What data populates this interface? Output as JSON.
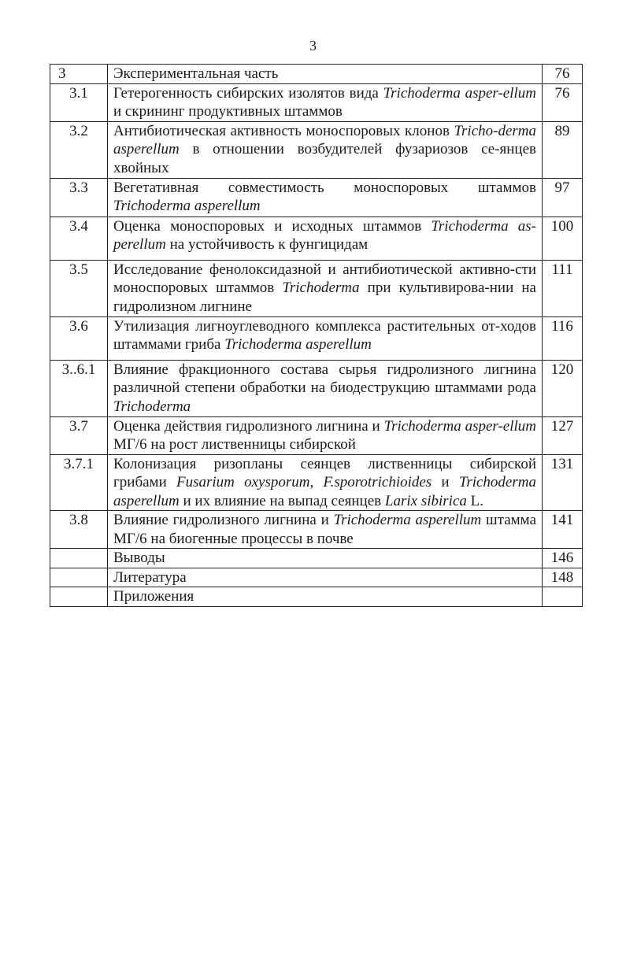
{
  "page_number": "3",
  "toc": [
    {
      "num": "3",
      "page": "76",
      "title": [
        {
          "t": "Экспериментальная часть",
          "i": false
        }
      ]
    },
    {
      "num": "3.1",
      "page": "76",
      "title": [
        {
          "t": "Гетерогенность сибирских изолятов вида ",
          "i": false
        },
        {
          "t": "Trichoderma asper-ellum",
          "i": true
        },
        {
          "t": " и скрининг продуктивных штаммов",
          "i": false
        }
      ]
    },
    {
      "num": "3.2",
      "page": "89",
      "title": [
        {
          "t": "Антибиотическая активность моноспоровых клонов ",
          "i": false
        },
        {
          "t": "Tricho-derma asperellum",
          "i": true
        },
        {
          "t": " в отношении возбудителей фузариозов се-янцев хвойных",
          "i": false
        }
      ]
    },
    {
      "num": "3.3",
      "page": "97",
      "title": [
        {
          "t": "Вегетативная совместимость моноспоровых штаммов ",
          "i": false
        },
        {
          "t": "Trichoderma asperellum",
          "i": true
        }
      ]
    },
    {
      "num": "3.4",
      "page": "100",
      "title": [
        {
          "t": "Оценка моноспоровых и исходных штаммов ",
          "i": false
        },
        {
          "t": "Trichoderma as-perellum",
          "i": true
        },
        {
          "t": " на устойчивость к фунгицидам",
          "i": false
        }
      ]
    },
    {
      "num": "3.5",
      "page": "111",
      "title": [
        {
          "t": "Исследование фенолоксидазной и антибиотической активно-сти моноспоровых штаммов ",
          "i": false
        },
        {
          "t": "Trichoderma",
          "i": true
        },
        {
          "t": " при культивирова-нии на гидролизном лигнине",
          "i": false
        }
      ]
    },
    {
      "num": "3.6",
      "page": "116",
      "title": [
        {
          "t": "Утилизация лигноуглеводного комплекса растительных от-ходов штаммами гриба ",
          "i": false
        },
        {
          "t": "Trichoderma asperellum",
          "i": true
        }
      ]
    },
    {
      "num": "3..6.1",
      "page": "120",
      "title": [
        {
          "t": "Влияние фракционного состава сырья гидролизного лигнина различной степени обработки на биодеструкцию штаммами рода ",
          "i": false
        },
        {
          "t": "Trichoderma",
          "i": true
        }
      ]
    },
    {
      "num": "3.7",
      "page": "127",
      "title": [
        {
          "t": "Оценка действия гидролизного лигнина и ",
          "i": false
        },
        {
          "t": "Trichoderma asper-ellum",
          "i": true
        },
        {
          "t": " МГ/6 на рост лиственницы сибирской",
          "i": false
        }
      ]
    },
    {
      "num": "3.7.1",
      "page": "131",
      "title": [
        {
          "t": "Колонизация ризопланы сеянцев лиственницы сибирской грибами ",
          "i": false
        },
        {
          "t": "Fusarium oxysporum, F.sporotrichioides",
          "i": true
        },
        {
          "t": " и ",
          "i": false
        },
        {
          "t": "Trichoderma asperellum",
          "i": true
        },
        {
          "t": " и их влияние на выпад сеянцев ",
          "i": false
        },
        {
          "t": "Larix sibirica",
          "i": true
        },
        {
          "t": " L.",
          "i": false
        }
      ]
    },
    {
      "num": "3.8",
      "page": "141",
      "title": [
        {
          "t": "Влияние гидролизного лигнина и ",
          "i": false
        },
        {
          "t": "Trichoderma asperellum",
          "i": true
        },
        {
          "t": " штамма МГ/6 на биогенные процессы в почве",
          "i": false
        }
      ]
    },
    {
      "num": "",
      "page": "146",
      "title": [
        {
          "t": "Выводы",
          "i": false
        }
      ]
    },
    {
      "num": "",
      "page": "148",
      "title": [
        {
          "t": "Литература",
          "i": false
        }
      ]
    },
    {
      "num": "",
      "page": "",
      "title": [
        {
          "t": "Приложения",
          "i": false
        }
      ]
    }
  ]
}
